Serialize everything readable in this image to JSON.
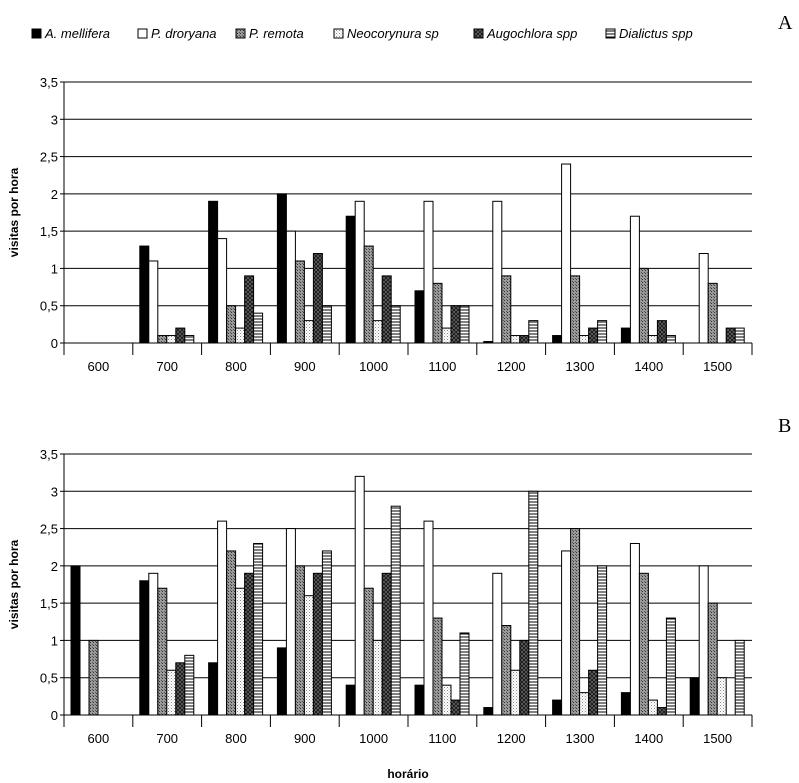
{
  "legend": {
    "entries": [
      "A. mellifera",
      "P. droryana",
      "P. remota",
      "Neocorynura sp",
      "Augochlora spp",
      "Dialictus spp"
    ],
    "fills": [
      "solid-black",
      "white",
      "dark-gray-hatch",
      "light-dots",
      "dark-crosshatch",
      "horizontal-lines"
    ]
  },
  "chart_data": [
    {
      "type": "bar",
      "panel_label": "A",
      "ylabel": "visitas por hora",
      "xlabel": "",
      "ylim": [
        0,
        3.5
      ],
      "yticks": [
        "0",
        "0,5",
        "1",
        "1,5",
        "2",
        "2,5",
        "3",
        "3,5"
      ],
      "categories": [
        "600",
        "700",
        "800",
        "900",
        "1000",
        "1100",
        "1200",
        "1300",
        "1400",
        "1500"
      ],
      "grid": "horizontal",
      "legend_position": "top",
      "series": [
        {
          "name": "A. mellifera",
          "values": [
            0,
            1.3,
            1.9,
            2.0,
            1.7,
            0.7,
            0.02,
            0.1,
            0.2,
            0
          ]
        },
        {
          "name": "P. droryana",
          "values": [
            0,
            1.1,
            1.4,
            1.5,
            1.9,
            1.9,
            1.9,
            2.4,
            1.7,
            1.2
          ]
        },
        {
          "name": "P. remota",
          "values": [
            0,
            0.1,
            0.5,
            1.1,
            1.3,
            0.8,
            0.9,
            0.9,
            1.0,
            0.8
          ]
        },
        {
          "name": "Neocorynura sp",
          "values": [
            0,
            0.1,
            0.2,
            0.3,
            0.3,
            0.2,
            0.1,
            0.1,
            0.1,
            0
          ]
        },
        {
          "name": "Augochlora spp",
          "values": [
            0,
            0.2,
            0.9,
            1.2,
            0.9,
            0.5,
            0.1,
            0.2,
            0.3,
            0.2
          ]
        },
        {
          "name": "Dialictus spp",
          "values": [
            0,
            0.1,
            0.4,
            0.5,
            0.5,
            0.5,
            0.3,
            0.3,
            0.1,
            0.2
          ]
        }
      ]
    },
    {
      "type": "bar",
      "panel_label": "B",
      "ylabel": "visitas por hora",
      "xlabel": "horário",
      "ylim": [
        0,
        3.5
      ],
      "yticks": [
        "0",
        "0,5",
        "1",
        "1,5",
        "2",
        "2,5",
        "3",
        "3,5"
      ],
      "categories": [
        "600",
        "700",
        "800",
        "900",
        "1000",
        "1100",
        "1200",
        "1300",
        "1400",
        "1500"
      ],
      "grid": "horizontal",
      "series": [
        {
          "name": "A. mellifera",
          "values": [
            2.0,
            1.8,
            0.7,
            0.9,
            0.4,
            0.4,
            0.1,
            0.2,
            0.3,
            0.5
          ]
        },
        {
          "name": "P. droryana",
          "values": [
            0,
            1.9,
            2.6,
            2.5,
            3.2,
            2.6,
            1.9,
            2.2,
            2.3,
            2.0
          ]
        },
        {
          "name": "P. remota",
          "values": [
            1.0,
            1.7,
            2.2,
            2.0,
            1.7,
            1.3,
            1.2,
            2.5,
            1.9,
            1.5
          ]
        },
        {
          "name": "Neocorynura sp",
          "values": [
            0,
            0.6,
            1.7,
            1.6,
            1.0,
            0.4,
            0.6,
            0.3,
            0.2,
            0.5
          ]
        },
        {
          "name": "Augochlora spp",
          "values": [
            0,
            0.7,
            1.9,
            1.9,
            1.9,
            0.2,
            1.0,
            0.6,
            0.1,
            0
          ]
        },
        {
          "name": "Dialictus spp",
          "values": [
            0,
            0.8,
            2.3,
            2.2,
            2.8,
            1.1,
            3.0,
            2.0,
            1.3,
            1.0
          ]
        }
      ]
    }
  ]
}
